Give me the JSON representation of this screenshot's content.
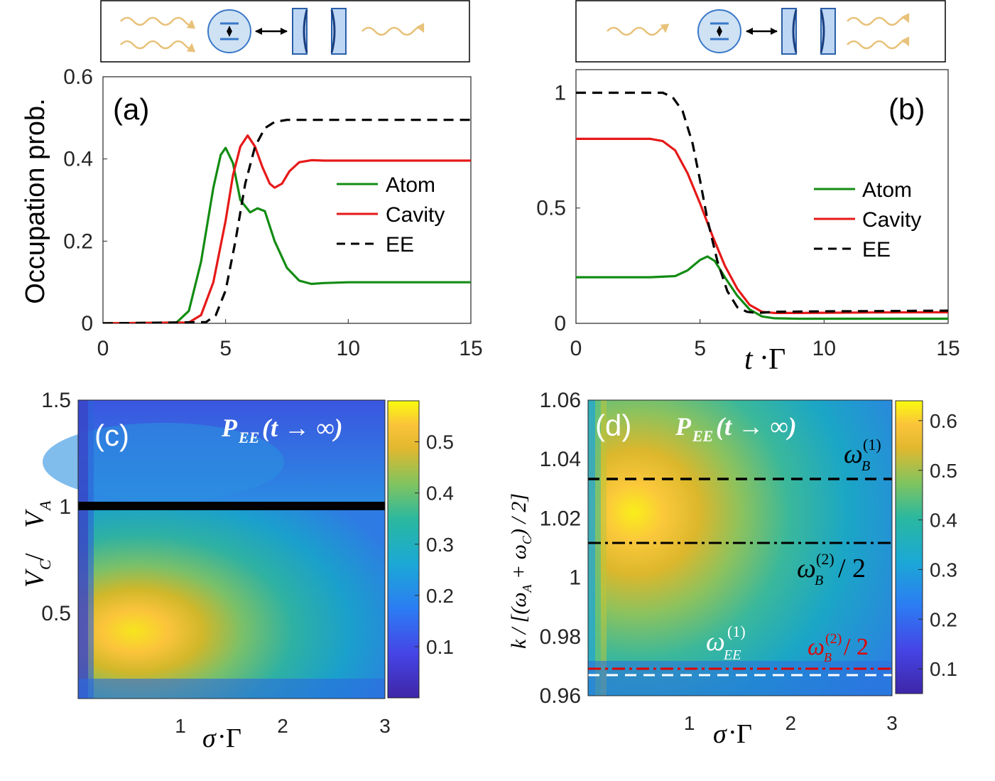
{
  "chart_data": [
    {
      "panel": "a",
      "type": "line",
      "label": "(a)",
      "ylabel": "Occupation prob.",
      "xlabel": "",
      "xlim": [
        0,
        15
      ],
      "ylim": [
        0,
        0.6
      ],
      "xticks": [
        "0",
        "5",
        "10",
        "15"
      ],
      "yticks": [
        "0",
        "0.2",
        "0.4",
        "0.6"
      ],
      "legend": [
        "Atom",
        "Cavity",
        "EE"
      ],
      "legend_position": "center-right",
      "series": [
        {
          "name": "Atom",
          "color": "#138c13",
          "style": "solid",
          "x": [
            0,
            3,
            3.5,
            4,
            4.5,
            4.8,
            5,
            5.3,
            5.6,
            6,
            6.3,
            6.6,
            7,
            7.5,
            8,
            8.5,
            9,
            10,
            12,
            15
          ],
          "y": [
            0,
            0.002,
            0.03,
            0.15,
            0.33,
            0.41,
            0.427,
            0.39,
            0.3,
            0.27,
            0.28,
            0.273,
            0.2,
            0.135,
            0.104,
            0.096,
            0.098,
            0.1,
            0.1,
            0.1
          ]
        },
        {
          "name": "Cavity",
          "color": "#e61919",
          "style": "solid",
          "x": [
            0,
            3.5,
            4,
            4.5,
            5,
            5.3,
            5.6,
            5.9,
            6.2,
            6.5,
            6.8,
            7,
            7.3,
            7.6,
            8,
            8.5,
            9,
            10,
            12,
            15
          ],
          "y": [
            0,
            0.002,
            0.02,
            0.1,
            0.25,
            0.36,
            0.43,
            0.457,
            0.43,
            0.38,
            0.34,
            0.33,
            0.34,
            0.37,
            0.392,
            0.397,
            0.396,
            0.396,
            0.396,
            0.396
          ]
        },
        {
          "name": "EE",
          "color": "#000000",
          "style": "dashed",
          "x": [
            0,
            4.2,
            4.6,
            5,
            5.4,
            5.8,
            6.2,
            6.6,
            7,
            7.5,
            8,
            9,
            12,
            15
          ],
          "y": [
            0,
            0.003,
            0.02,
            0.08,
            0.2,
            0.34,
            0.43,
            0.475,
            0.49,
            0.495,
            0.495,
            0.495,
            0.495,
            0.495
          ]
        }
      ]
    },
    {
      "panel": "b",
      "type": "line",
      "label": "(b)",
      "xlabel": "t · Γ",
      "xlim": [
        0,
        15
      ],
      "ylim": [
        0,
        1.1
      ],
      "xticks": [
        "0",
        "5",
        "10",
        "15"
      ],
      "yticks": [
        "0",
        "0.5",
        "1"
      ],
      "legend": [
        "Atom",
        "Cavity",
        "EE"
      ],
      "legend_position": "center-right",
      "series": [
        {
          "name": "Atom",
          "color": "#138c13",
          "style": "solid",
          "x": [
            0,
            3,
            4,
            4.5,
            5,
            5.3,
            5.6,
            6,
            6.5,
            7,
            7.5,
            8,
            9,
            10,
            12,
            15
          ],
          "y": [
            0.2,
            0.2,
            0.205,
            0.23,
            0.275,
            0.29,
            0.27,
            0.2,
            0.12,
            0.06,
            0.03,
            0.022,
            0.02,
            0.02,
            0.02,
            0.02
          ]
        },
        {
          "name": "Cavity",
          "color": "#e61919",
          "style": "solid",
          "x": [
            0,
            3,
            3.5,
            4,
            4.5,
            5,
            5.5,
            6,
            6.5,
            7,
            7.5,
            8,
            9,
            10,
            12,
            15
          ],
          "y": [
            0.8,
            0.8,
            0.79,
            0.75,
            0.65,
            0.52,
            0.38,
            0.25,
            0.15,
            0.08,
            0.05,
            0.045,
            0.045,
            0.046,
            0.047,
            0.048
          ]
        },
        {
          "name": "EE",
          "color": "#000000",
          "style": "dashed",
          "x": [
            0,
            3.5,
            3.9,
            4.3,
            4.7,
            5,
            5.3,
            5.7,
            6.1,
            6.5,
            6.9,
            7.3,
            8,
            10,
            12,
            15
          ],
          "y": [
            1.0,
            1.0,
            0.98,
            0.92,
            0.78,
            0.62,
            0.45,
            0.27,
            0.14,
            0.07,
            0.05,
            0.045,
            0.05,
            0.052,
            0.053,
            0.055
          ]
        }
      ]
    },
    {
      "panel": "c",
      "type": "heatmap",
      "label": "(c)",
      "annotation": "P_EE(t→∞)",
      "xlabel": "σ · Γ",
      "ylabel": "V_C / V_A",
      "xlim": [
        0,
        3
      ],
      "ylim": [
        0.1,
        1.5
      ],
      "xticks": [
        "1",
        "2",
        "3"
      ],
      "yticks": [
        "0.5",
        "1",
        "1.5"
      ],
      "colorbar_ticks": [
        "0.1",
        "0.2",
        "0.3",
        "0.4",
        "0.5"
      ],
      "colorbar_range": [
        0,
        0.58
      ],
      "peak": {
        "x": 0.55,
        "y": 0.5,
        "value": 0.57
      },
      "reference_line": {
        "y": 1,
        "color": "#000000",
        "style": "solid-thick"
      }
    },
    {
      "panel": "d",
      "type": "heatmap",
      "label": "(d)",
      "annotation": "P_EE(t→∞)",
      "xlabel": "σ · Γ",
      "ylabel": "k / [(ω_A + ω_C) / 2]",
      "xlim": [
        0,
        3
      ],
      "ylim": [
        0.96,
        1.06
      ],
      "xticks": [
        "1",
        "2",
        "3"
      ],
      "yticks": [
        "0.96",
        "0.98",
        "1",
        "1.02",
        "1.04",
        "1.06"
      ],
      "colorbar_ticks": [
        "0.1",
        "0.2",
        "0.3",
        "0.4",
        "0.5",
        "0.6"
      ],
      "colorbar_range": [
        0.05,
        0.64
      ],
      "peak": {
        "x": 0.6,
        "y": 1.02,
        "value": 0.63
      },
      "reference_lines": [
        {
          "y": 1.033,
          "label": "ω_B^(1)",
          "color": "#000000",
          "style": "dashed"
        },
        {
          "y": 1.011,
          "label": "ω_B^(2) / 2",
          "color": "#000000",
          "style": "dashdot"
        },
        {
          "y": 0.9685,
          "label": "ω_B^(2) / 2",
          "color": "#e00000",
          "style": "dashdot"
        },
        {
          "y": 0.9665,
          "label": "ω_EE^(1)",
          "color": "#ffffff",
          "style": "dashed"
        }
      ]
    }
  ],
  "labels": {
    "a": "(a)",
    "b": "(b)",
    "c": "(c)",
    "d": "(d)",
    "ylabel_a": "Occupation prob.",
    "xlabel_b_t": "t",
    "xlabel_b_dot": "·",
    "xlabel_b_gamma": "Γ",
    "sigma": "σ",
    "dot": "·",
    "gamma": "Γ",
    "P": "P",
    "EE": "EE",
    "t_inf": "(t → ∞)",
    "atom": "Atom",
    "cavity": "Cavity",
    "ee": "EE",
    "V": "V",
    "C": "C",
    "A": "A",
    "slash": " / ",
    "omega": "ω",
    "B": "B",
    "sup1": "(1)",
    "sup2": "(2)",
    "half": " / 2",
    "k_label": "k / [(ω",
    "k_plus": " + ω",
    "k_end": ") / 2]"
  },
  "colors": {
    "atom": "#138c13",
    "cavity": "#e61919",
    "ee": "#000000",
    "wave": "#e8c27a",
    "atom_circle": "#cfe2f3",
    "mirror": "#bcd6f3",
    "accent": "#3a78c9"
  }
}
